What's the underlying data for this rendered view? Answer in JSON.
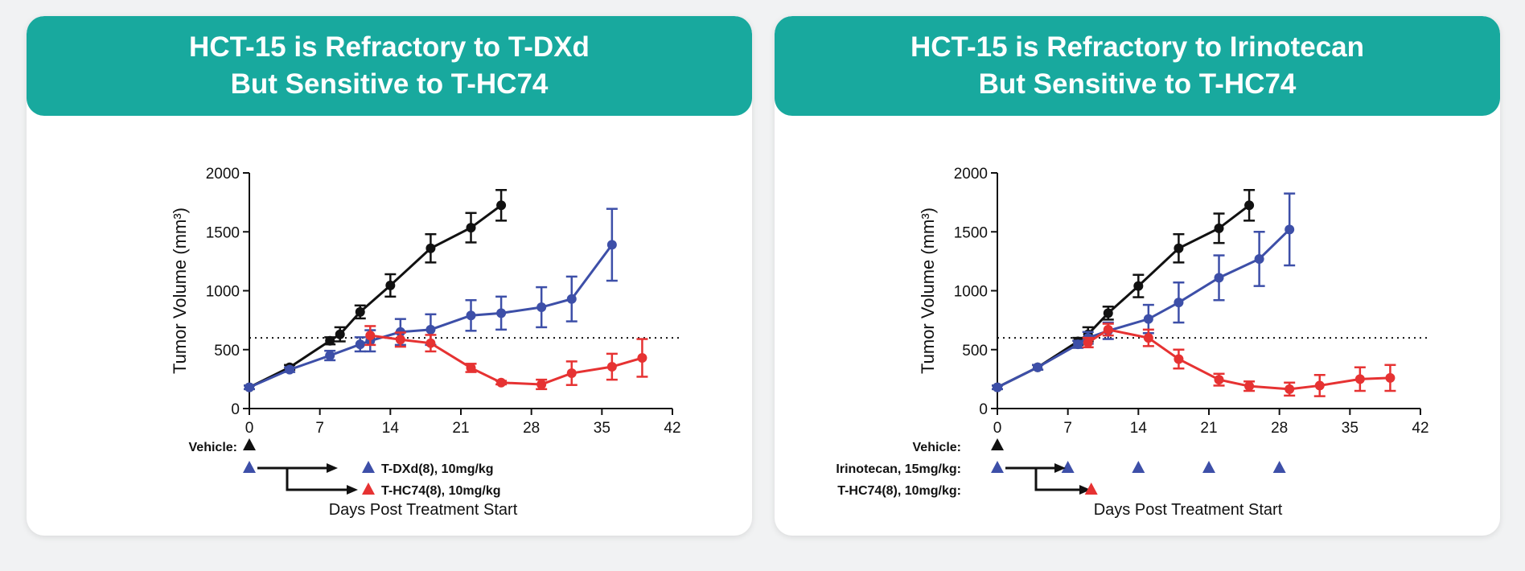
{
  "colors": {
    "teal": "#18a99e",
    "black": "#111111",
    "blue": "#3d4fa8",
    "red": "#e63232"
  },
  "panels": [
    {
      "title_line1": "HCT-15 is Refractory to T-DXd",
      "title_line2": "But Sensitive to T-HC74",
      "labels": {
        "vehicle": "Vehicle:",
        "tdxd": "T-DXd(8), 10mg/kg",
        "thc74": "T-HC74(8), 10mg/kg"
      }
    },
    {
      "title_line1": "HCT-15 is Refractory to Irinotecan",
      "title_line2": "But Sensitive to T-HC74",
      "labels": {
        "vehicle": "Vehicle:",
        "irinotecan": "Irinotecan, 15mg/kg:",
        "thc74": "T-HC74(8), 10mg/kg:"
      }
    }
  ],
  "chart_data": [
    {
      "type": "line",
      "title": "HCT-15 is Refractory to T-DXd But Sensitive to T-HC74",
      "xlabel": "Days Post Treatment Start",
      "ylabel": "Tumor Volume (mm³)",
      "xlim": [
        0,
        42
      ],
      "ylim": [
        0,
        2000
      ],
      "xticks": [
        0,
        7,
        14,
        21,
        28,
        35,
        42
      ],
      "yticks": [
        0,
        500,
        1000,
        1500,
        2000
      ],
      "reference_line": 600,
      "dosing": {
        "vehicle_days": [
          0
        ],
        "tdxd_days": [
          0
        ],
        "thc74_days": [
          0
        ]
      },
      "series": [
        {
          "name": "Vehicle",
          "color": "black",
          "marker": "circle",
          "x": [
            0,
            4,
            8,
            9,
            11,
            14,
            18,
            22,
            25
          ],
          "y": [
            180,
            350,
            575,
            630,
            820,
            1045,
            1360,
            1535,
            1725
          ],
          "err": [
            15,
            20,
            30,
            60,
            55,
            95,
            120,
            125,
            130
          ]
        },
        {
          "name": "T-DXd(8), 10mg/kg",
          "color": "blue",
          "marker": "circle",
          "x": [
            0,
            4,
            8,
            11,
            12,
            15,
            18,
            22,
            25,
            29,
            32,
            36
          ],
          "y": [
            180,
            330,
            450,
            545,
            575,
            650,
            670,
            790,
            810,
            860,
            930,
            1390
          ],
          "err": [
            15,
            20,
            40,
            60,
            90,
            110,
            130,
            130,
            140,
            170,
            190,
            305
          ]
        },
        {
          "name": "T-HC74(8), 10mg/kg",
          "color": "red",
          "marker": "circle",
          "x": [
            12,
            15,
            18,
            22,
            25,
            29,
            32,
            36,
            39
          ],
          "y": [
            620,
            585,
            555,
            345,
            220,
            205,
            300,
            355,
            430
          ],
          "err": [
            80,
            60,
            70,
            35,
            15,
            40,
            100,
            110,
            160
          ]
        }
      ]
    },
    {
      "type": "line",
      "title": "HCT-15 is Refractory to Irinotecan But Sensitive to T-HC74",
      "xlabel": "Days Post Treatment Start",
      "ylabel": "Tumor Volume (mm³)",
      "xlim": [
        0,
        42
      ],
      "ylim": [
        0,
        2000
      ],
      "xticks": [
        0,
        7,
        14,
        21,
        28,
        35,
        42
      ],
      "yticks": [
        0,
        500,
        1000,
        1500,
        2000
      ],
      "reference_line": 600,
      "dosing": {
        "vehicle_days": [
          0
        ],
        "irinotecan_days": [
          0,
          7,
          14,
          21,
          28
        ],
        "thc74_days": [
          9
        ]
      },
      "series": [
        {
          "name": "Vehicle",
          "color": "black",
          "marker": "circle",
          "x": [
            0,
            4,
            8,
            9,
            11,
            14,
            18,
            22,
            25
          ],
          "y": [
            180,
            350,
            570,
            630,
            810,
            1040,
            1360,
            1530,
            1725
          ],
          "err": [
            15,
            20,
            30,
            60,
            55,
            95,
            120,
            125,
            130
          ]
        },
        {
          "name": "Irinotecan, 15mg/kg",
          "color": "blue",
          "marker": "circle",
          "x": [
            0,
            4,
            8,
            9,
            11,
            15,
            18,
            22,
            26,
            29
          ],
          "y": [
            180,
            350,
            545,
            600,
            660,
            760,
            900,
            1110,
            1270,
            1520
          ],
          "err": [
            15,
            20,
            30,
            50,
            70,
            120,
            170,
            190,
            230,
            305
          ]
        },
        {
          "name": "T-HC74(8), 10mg/kg",
          "color": "red",
          "marker": "circle",
          "x": [
            9,
            11,
            15,
            18,
            22,
            25,
            29,
            32,
            36,
            39
          ],
          "y": [
            560,
            670,
            600,
            420,
            245,
            190,
            165,
            195,
            250,
            260
          ],
          "err": [
            40,
            50,
            70,
            80,
            50,
            40,
            55,
            90,
            100,
            110
          ]
        }
      ]
    }
  ]
}
